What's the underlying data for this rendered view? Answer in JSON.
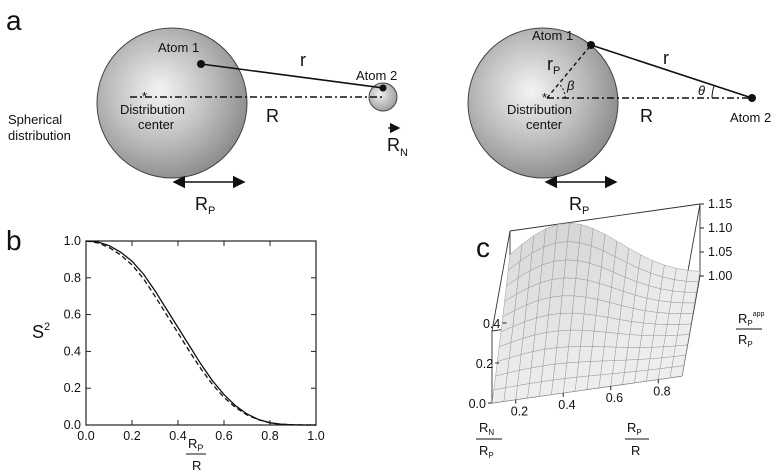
{
  "panel_a": {
    "letter": "a",
    "left": {
      "side_label_line1": "Spherical",
      "side_label_line2": "distribution",
      "atom1": "Atom 1",
      "atom2": "Atom 2",
      "r": "r",
      "R": "R",
      "center_line1": "Distribution",
      "center_line2": "center",
      "rp_main": "R",
      "rp_sub": "P",
      "rn_main": "R",
      "rn_sub": "N"
    },
    "right": {
      "atom1": "Atom 1",
      "atom2": "Atom 2",
      "r": "r",
      "rp_small_main": "r",
      "rp_small_sub": "P",
      "beta": "β",
      "theta": "θ",
      "R": "R",
      "center_line1": "Distribution",
      "center_line2": "center",
      "rp_main": "R",
      "rp_sub": "P"
    }
  },
  "panel_b": {
    "letter": "b",
    "ylabel_main": "S",
    "ylabel_sup": "2",
    "xlabel_num_main": "R",
    "xlabel_num_sub": "P",
    "xlabel_den": "R",
    "chart_data": {
      "type": "line",
      "xlim": [
        0,
        1
      ],
      "ylim": [
        0,
        1
      ],
      "xticks": [
        "0.0",
        "0.2",
        "0.4",
        "0.6",
        "0.8",
        "1.0"
      ],
      "yticks": [
        "0.0",
        "0.2",
        "0.4",
        "0.6",
        "0.8",
        "1.0"
      ],
      "series": [
        {
          "style": "solid",
          "x": [
            0.0,
            0.05,
            0.1,
            0.15,
            0.2,
            0.25,
            0.3,
            0.35,
            0.4,
            0.45,
            0.5,
            0.55,
            0.6,
            0.65,
            0.7,
            0.75,
            0.8,
            0.85,
            0.9,
            0.95,
            1.0
          ],
          "y": [
            1.0,
            0.995,
            0.975,
            0.94,
            0.89,
            0.82,
            0.73,
            0.63,
            0.53,
            0.43,
            0.33,
            0.24,
            0.165,
            0.105,
            0.06,
            0.03,
            0.012,
            0.004,
            0.001,
            0.0,
            0.0
          ]
        },
        {
          "style": "dashed",
          "x": [
            0.0,
            0.05,
            0.1,
            0.15,
            0.2,
            0.25,
            0.3,
            0.35,
            0.4,
            0.45,
            0.5,
            0.55,
            0.6,
            0.65,
            0.7,
            0.75,
            0.8,
            0.85,
            0.9,
            0.95,
            1.0
          ],
          "y": [
            1.0,
            0.99,
            0.965,
            0.925,
            0.87,
            0.795,
            0.7,
            0.6,
            0.5,
            0.4,
            0.305,
            0.22,
            0.15,
            0.095,
            0.055,
            0.028,
            0.012,
            0.004,
            0.001,
            0.0,
            0.0
          ]
        }
      ]
    }
  },
  "panel_c": {
    "letter": "c",
    "zlabel_num_main": "R",
    "zlabel_num_sub": "P",
    "zlabel_num_sup": "app",
    "zlabel_den_main": "R",
    "zlabel_den_sub": "P",
    "ylabel_num_main": "R",
    "ylabel_num_sub": "N",
    "ylabel_den_main": "R",
    "ylabel_den_sub": "P",
    "xlabel_num_main": "R",
    "xlabel_num_sub": "P",
    "xlabel_den": "R",
    "chart_data": {
      "type": "surface",
      "x_ticks": [
        "0.2",
        "0.4",
        "0.6",
        "0.8"
      ],
      "y_ticks": [
        "0.0",
        "0.2",
        "0.4"
      ],
      "z_ticks": [
        "1.00",
        "1.05",
        "1.10",
        "1.15"
      ],
      "x_range": [
        0.1,
        0.9
      ],
      "y_range": [
        0.0,
        0.5
      ],
      "z_range": [
        1.0,
        1.15
      ]
    }
  }
}
